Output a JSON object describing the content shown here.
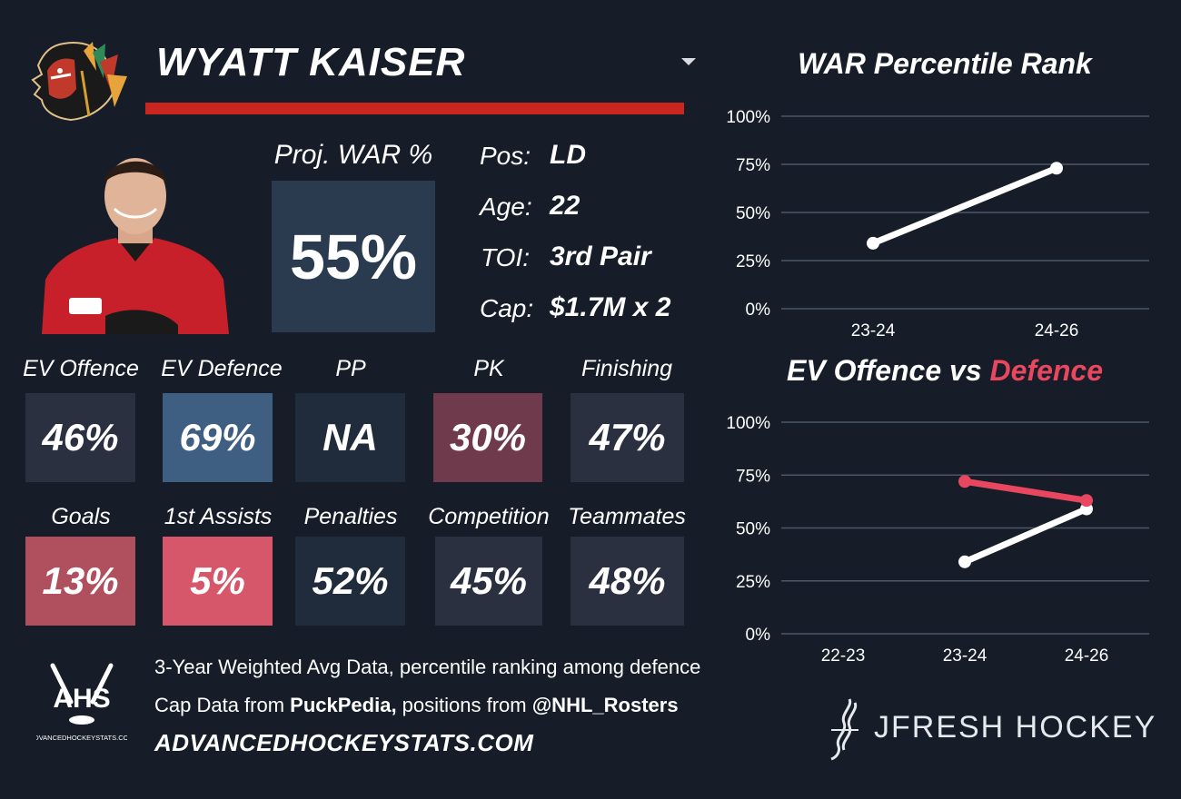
{
  "player": {
    "name": "WYATT KAISER",
    "proj_war_label": "Proj. WAR %",
    "proj_war_value": "55%",
    "info": [
      {
        "label": "Pos:",
        "value": "LD"
      },
      {
        "label": "Age:",
        "value": "22"
      },
      {
        "label": "TOI:",
        "value": "3rd Pair"
      },
      {
        "label": "Cap:",
        "value": "$1.7M x 2"
      }
    ]
  },
  "stats_row1": [
    {
      "label": "EV Offence",
      "value": "46%",
      "color": "#2b3040"
    },
    {
      "label": "EV Defence",
      "value": "69%",
      "color": "#3f5f82"
    },
    {
      "label": "PP",
      "value": "NA",
      "color": "#202c3b"
    },
    {
      "label": "PK",
      "value": "30%",
      "color": "#703a4d"
    },
    {
      "label": "Finishing",
      "value": "47%",
      "color": "#2b3040"
    }
  ],
  "stats_row2": [
    {
      "label": "Goals",
      "value": "13%",
      "color": "#b0505f"
    },
    {
      "label": "1st Assists",
      "value": "5%",
      "color": "#d6576a"
    },
    {
      "label": "Penalties",
      "value": "52%",
      "color": "#202c3b"
    },
    {
      "label": "Competition",
      "value": "45%",
      "color": "#2b3040"
    },
    {
      "label": "Teammates",
      "value": "48%",
      "color": "#2b3040"
    }
  ],
  "footer": {
    "line1": "3-Year Weighted Avg Data, percentile ranking among defence",
    "line2_prefix": "Cap Data from ",
    "line2_source": "PuckPedia,",
    "line2_mid": " positions from ",
    "line2_handle": "@NHL_Rosters",
    "site": "ADVANCEDHOCKEYSTATS.COM",
    "ahs_logo": "AHS",
    "ahs_logo_sub": "ADVANCEDHOCKEYSTATS.COM",
    "brand": "JFRESH HOCKEY"
  },
  "colors": {
    "accent_red": "#c9261f",
    "defence_line": "#e8475f",
    "offence_line": "#ffffff",
    "grid": "#4a5668"
  },
  "icons": {
    "team_logo": "blackhawks-logo-icon",
    "dropdown": "chevron-down-icon",
    "ahs": "ahs-logo-icon",
    "jfresh": "jfresh-logo-icon"
  },
  "chart_data": [
    {
      "type": "line",
      "title": "WAR Percentile Rank",
      "categories": [
        "23-24",
        "24-26"
      ],
      "series": [
        {
          "values": [
            34,
            73
          ]
        }
      ],
      "ylim": [
        0,
        100
      ],
      "yticks": [
        "0%",
        "25%",
        "50%",
        "75%",
        "100%"
      ],
      "grid": true
    },
    {
      "type": "line",
      "title_parts": [
        "EV Offence vs ",
        "Defence"
      ],
      "categories": [
        "22-23",
        "23-24",
        "24-26"
      ],
      "series": [
        {
          "key": "offence",
          "values": [
            null,
            34,
            59
          ]
        },
        {
          "key": "defence",
          "values": [
            null,
            72,
            63
          ]
        }
      ],
      "ylim": [
        0,
        100
      ],
      "yticks": [
        "0%",
        "25%",
        "50%",
        "75%",
        "100%"
      ],
      "grid": true
    }
  ]
}
